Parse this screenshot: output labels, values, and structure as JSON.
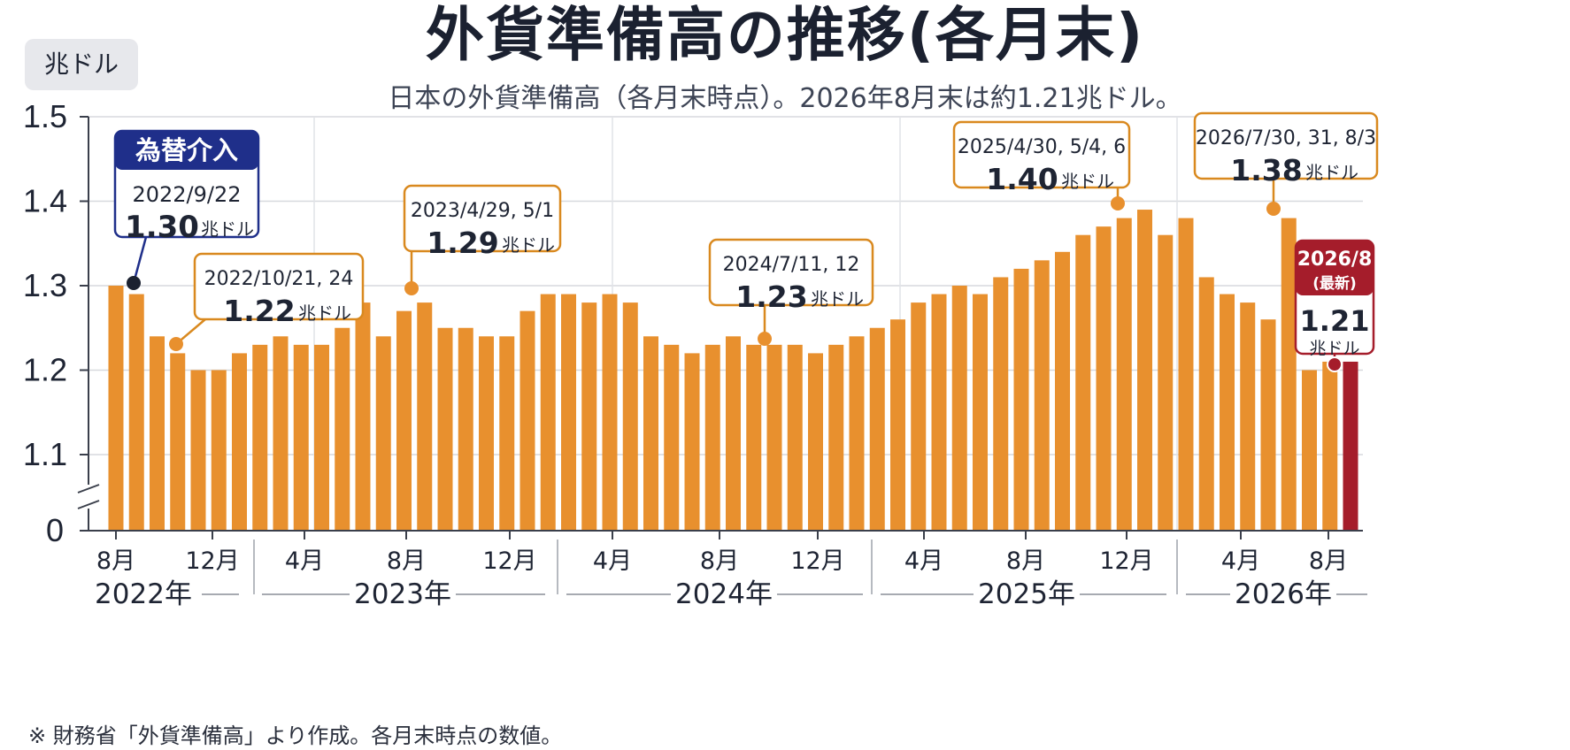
{
  "title": "外貨準備高の推移(各月末)",
  "subtitle": "日本の外貨準備高（各月末時点）。2026年8月末は約1.21兆ドル。",
  "unit_badge": "兆ドル",
  "footnote": "※ 財務省「外貨準備高」より作成。各月末時点の数値。",
  "colors": {
    "bar": "#e8902e",
    "bar_latest": "#a51d2b",
    "annotation_border": "#d9891f",
    "intervention": "#1f2f8a",
    "latest": "#a51d2b"
  },
  "chart_data": {
    "type": "bar",
    "ylim": [
      0,
      1.5
    ],
    "axis_break": true,
    "yticks": [
      "0",
      "1.1",
      "1.2",
      "1.3",
      "1.4",
      "1.5"
    ],
    "grid": true,
    "values": [
      1.3,
      1.29,
      1.24,
      1.22,
      1.2,
      1.2,
      1.22,
      1.23,
      1.24,
      1.23,
      1.23,
      1.25,
      1.28,
      1.24,
      1.27,
      1.28,
      1.25,
      1.25,
      1.24,
      1.24,
      1.27,
      1.29,
      1.29,
      1.28,
      1.29,
      1.28,
      1.24,
      1.23,
      1.22,
      1.23,
      1.24,
      1.23,
      1.23,
      1.23,
      1.22,
      1.23,
      1.24,
      1.25,
      1.26,
      1.28,
      1.29,
      1.3,
      1.29,
      1.31,
      1.32,
      1.33,
      1.34,
      1.36,
      1.37,
      1.38,
      1.39,
      1.36,
      1.38,
      1.31,
      1.29,
      1.28,
      1.26,
      1.38,
      1.2,
      1.21,
      1.21
    ],
    "month_labels": [
      "8月",
      "12月",
      "4月",
      "8月",
      "12月",
      "4月",
      "8月",
      "12月",
      "4月",
      "8月",
      "12月",
      "4月",
      "8月"
    ],
    "year_labels": [
      "2022年",
      "2023年",
      "2024年",
      "2025年",
      "2026年"
    ],
    "annotations": [
      {
        "kind": "intervention",
        "header": "為替介入",
        "date": "2022/9/22",
        "value": "1.30",
        "unit": "兆ドル"
      },
      {
        "kind": "normal",
        "date": "2022/10/21, 24",
        "value": "1.22",
        "unit": "兆ドル"
      },
      {
        "kind": "normal",
        "date": "2023/4/29, 5/1",
        "value": "1.29",
        "unit": "兆ドル"
      },
      {
        "kind": "normal",
        "date": "2024/7/11, 12",
        "value": "1.23",
        "unit": "兆ドル"
      },
      {
        "kind": "normal",
        "date": "2025/4/30, 5/4, 6",
        "value": "1.40",
        "unit": "兆ドル"
      },
      {
        "kind": "normal",
        "date": "2026/7/30, 31, 8/3",
        "value": "1.38",
        "unit": "兆ドル"
      },
      {
        "kind": "latest",
        "header": "2026/8",
        "subheader": "(最新)",
        "value": "1.21",
        "unit": "兆ドル"
      }
    ]
  }
}
